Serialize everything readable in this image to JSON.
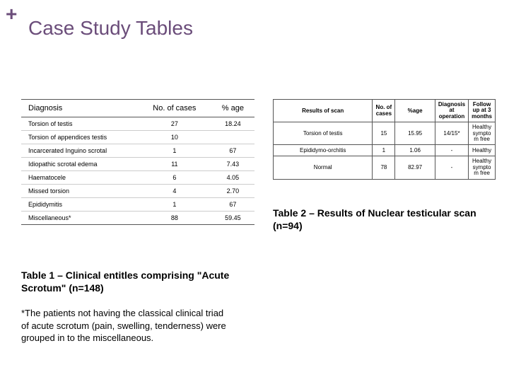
{
  "accent_color": "#6b4d7a",
  "plus_glyph": "+",
  "title": "Case Study Tables",
  "table1": {
    "columns": [
      "Diagnosis",
      "No. of cases",
      "% age"
    ],
    "rows": [
      [
        "Torsion of testis",
        "27",
        "18.24"
      ],
      [
        "Torsion of appendices testis",
        "10",
        ""
      ],
      [
        "Incarcerated Inguino scrotal",
        "1",
        "67"
      ],
      [
        "Idiopathic scrotal edema",
        "11",
        "7.43"
      ],
      [
        "Haematocele",
        "6",
        "4.05"
      ],
      [
        "Missed torsion",
        "4",
        "2.70"
      ],
      [
        "Epididymitis",
        "1",
        "67"
      ],
      [
        "Miscellaneous*",
        "88",
        "59.45"
      ]
    ]
  },
  "table2": {
    "columns": [
      "Results of scan",
      "No. of cases",
      "%age",
      "Diagnosis at operation",
      "Follow up at 3 months"
    ],
    "rows": [
      [
        "Torsion of testis",
        "15",
        "15.95",
        "14/15*",
        "Healthy sympto m free"
      ],
      [
        "Epididymo-orchitis",
        "1",
        "1.06",
        "-",
        "Healthy"
      ],
      [
        "Normal",
        "78",
        "82.97",
        "-",
        "Healthy sympto m free"
      ]
    ]
  },
  "caption1": "Table 1 – Clinical entitles comprising \"Acute Scrotum\" (n=148)",
  "caption2": "Table 2 – Results of Nuclear testicular scan (n=94)",
  "footnote": "*The patients not having the classical clinical triad of acute scrotum (pain, swelling, tenderness) were grouped in to the miscellaneous."
}
